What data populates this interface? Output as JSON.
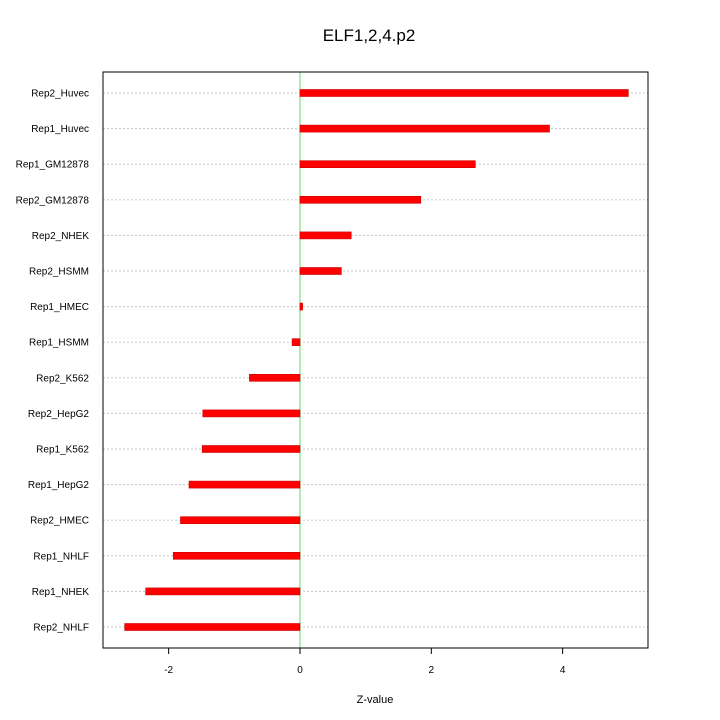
{
  "chart_data": {
    "type": "bar",
    "orientation": "horizontal",
    "title": "ELF1,2,4.p2",
    "xlabel": "Z-value",
    "ylabel": "",
    "categories": [
      "Rep2_Huvec",
      "Rep1_Huvec",
      "Rep1_GM12878",
      "Rep2_GM12878",
      "Rep2_NHEK",
      "Rep2_HSMM",
      "Rep1_HMEC",
      "Rep1_HSMM",
      "Rep2_K562",
      "Rep2_HepG2",
      "Rep1_K562",
      "Rep1_HepG2",
      "Rep2_HMEC",
      "Rep1_NHLF",
      "Rep1_NHEK",
      "Rep2_NHLF"
    ],
    "values": [
      5.0,
      3.8,
      2.67,
      1.84,
      0.78,
      0.63,
      0.04,
      -0.12,
      -0.77,
      -1.48,
      -1.49,
      -1.69,
      -1.82,
      -1.93,
      -2.35,
      -2.67
    ],
    "xlim": [
      -3.0,
      5.3
    ],
    "xticks": [
      -2,
      0,
      2,
      4
    ],
    "xtick_labels": [
      "-2",
      "0",
      "2",
      "4"
    ],
    "zero_line": 0,
    "grid": "horizontal-dotted",
    "legend": "none",
    "colors": {
      "bar": "#ff0000",
      "bar_edge": "#cc0000",
      "zero_line": "#7fdf7f",
      "grid": "#c8c8c8",
      "axis": "#000000"
    }
  }
}
